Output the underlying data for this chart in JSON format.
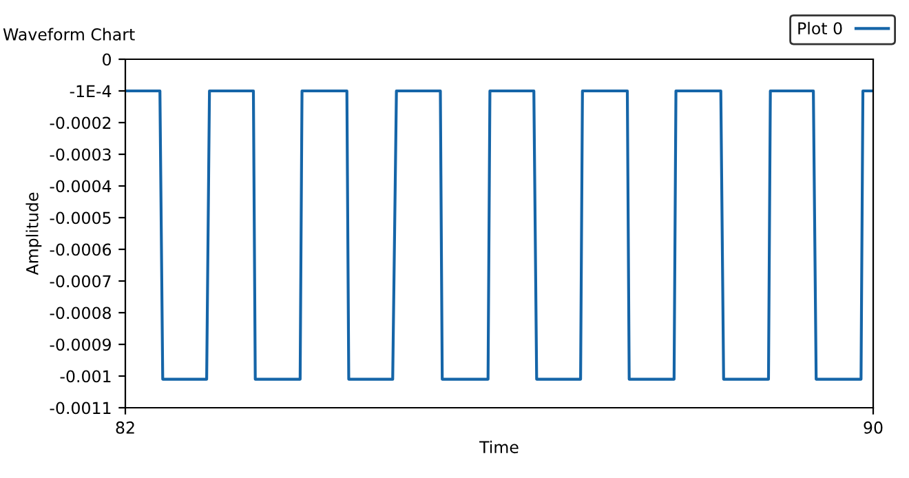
{
  "chart_data": {
    "type": "line",
    "title": "Waveform Chart",
    "xlabel": "Time",
    "ylabel": "Amplitude",
    "series": [
      {
        "name": "Plot 0",
        "color": "#1565a8",
        "x": [
          82,
          82.37,
          82.4,
          82.87,
          82.9,
          83.37,
          83.39,
          83.87,
          83.89,
          84.37,
          84.39,
          84.86,
          84.9,
          85.37,
          85.39,
          85.88,
          85.9,
          86.37,
          86.4,
          86.87,
          86.89,
          87.37,
          87.39,
          87.87,
          87.89,
          88.37,
          88.4,
          88.88,
          88.9,
          89.36,
          89.39,
          89.87,
          89.89,
          90
        ],
        "values": [
          -0.0001,
          -0.0001,
          -0.00101,
          -0.00101,
          -0.0001,
          -0.0001,
          -0.00101,
          -0.00101,
          -0.0001,
          -0.0001,
          -0.00101,
          -0.00101,
          -0.0001,
          -0.0001,
          -0.00101,
          -0.00101,
          -0.0001,
          -0.0001,
          -0.00101,
          -0.00101,
          -0.0001,
          -0.0001,
          -0.00101,
          -0.00101,
          -0.0001,
          -0.0001,
          -0.00101,
          -0.00101,
          -0.0001,
          -0.0001,
          -0.00101,
          -0.00101,
          -0.0001,
          -0.0001
        ]
      }
    ],
    "xlim": [
      82,
      90
    ],
    "xticks": [
      82,
      90
    ],
    "ylim": [
      -0.0011,
      0
    ],
    "yticks": [
      0,
      {
        "value": -0.0001,
        "label": "-1E-4"
      },
      -0.0002,
      -0.0003,
      -0.0004,
      -0.0005,
      -0.0006,
      -0.0007,
      -0.0008,
      -0.0009,
      -0.001,
      -0.0011
    ],
    "grid": false,
    "legend": "top right",
    "marker": "none",
    "line_style": "solid"
  }
}
